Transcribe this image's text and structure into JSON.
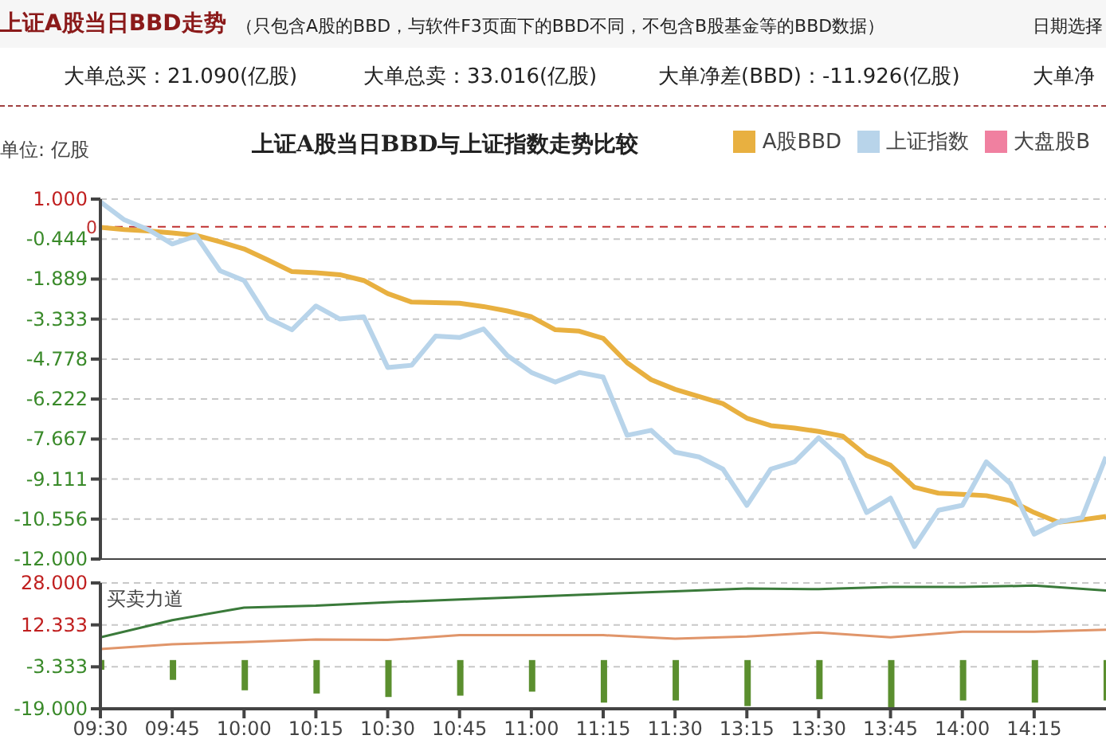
{
  "chart_data": [
    {
      "type": "line",
      "title": "上证A股当日BBD与上证指数走势比较",
      "ylabel": "单位: 亿股",
      "annotations": [
        "上证A股当日BBD走势",
        "（只包含A股的BBD，与软件F3页面下的BBD不同，不包含B股基金等的BBD数据）",
        "日期选择",
        "大单总买：21.090(亿股)",
        "大单总卖：33.016(亿股)",
        "大单净差(BBD)：-11.926(亿股)",
        "大单净"
      ],
      "categories": [
        null,
        null,
        null,
        null,
        null,
        null,
        null,
        null,
        null,
        null,
        null,
        null,
        null,
        null,
        null,
        null,
        null,
        null,
        null,
        null,
        null,
        null,
        null,
        null,
        null,
        null,
        null,
        null,
        null,
        null,
        null,
        null,
        null,
        null,
        null,
        null,
        null,
        null,
        null,
        null,
        null,
        null,
        null
      ],
      "series": [
        {
          "name": "A股BBD",
          "color": "#e8b040",
          "values": [
            -0.02,
            -0.1,
            -0.15,
            -0.22,
            -0.31,
            -0.54,
            -0.8,
            -1.2,
            -1.62,
            -1.66,
            -1.73,
            -1.94,
            -2.41,
            -2.72,
            -2.74,
            -2.76,
            -2.88,
            -3.04,
            -3.25,
            -3.72,
            -3.77,
            -4.03,
            -4.91,
            -5.52,
            -5.87,
            -6.13,
            -6.39,
            -6.91,
            -7.18,
            -7.27,
            -7.39,
            -7.56,
            -8.26,
            -8.61,
            -9.41,
            -9.62,
            -9.66,
            -9.71,
            -9.89,
            -10.32,
            -10.67,
            -10.58,
            -10.46
          ]
        },
        {
          "name": "上证指数",
          "color": "#b8d4ea",
          "values": [
            0.9,
            0.25,
            -0.1,
            -0.62,
            -0.33,
            -1.59,
            -1.94,
            -3.3,
            -3.72,
            -2.86,
            -3.33,
            -3.25,
            -5.08,
            -5.0,
            -3.95,
            -4.0,
            -3.69,
            -4.65,
            -5.26,
            -5.61,
            -5.26,
            -5.43,
            -7.53,
            -7.35,
            -8.14,
            -8.31,
            -8.75,
            -10.06,
            -8.75,
            -8.49,
            -7.62,
            -8.4,
            -10.32,
            -9.8,
            -11.55,
            -10.24,
            -10.06,
            -8.49,
            -9.27,
            -11.1,
            -10.67,
            -10.5,
            -8.31
          ]
        },
        {
          "name": "大盘股B",
          "color": "#f080a0",
          "values": [
            null,
            null,
            null,
            null,
            null,
            null,
            null,
            null,
            null,
            null,
            null,
            null,
            null,
            null,
            null,
            null,
            null,
            null,
            null,
            null,
            null,
            null,
            null,
            null,
            null,
            null,
            null,
            null,
            null,
            null,
            null,
            null,
            null,
            null,
            null,
            null,
            null,
            null,
            null,
            null,
            null,
            null,
            null
          ]
        }
      ],
      "ylim": [
        -12,
        1
      ],
      "yticks": [
        {
          "value": 1,
          "label": "1.000"
        },
        -0.444,
        -1.889,
        -3.333,
        -4.778,
        -6.222,
        -7.667,
        -9.111,
        -10.556,
        {
          "value": -12,
          "label": "-12.000"
        }
      ],
      "ref_lines": [
        {
          "axis": "y",
          "value": 0,
          "label": "0",
          "color": "#c03030",
          "line_style": "dashed"
        }
      ],
      "grid": "y",
      "legend": "top right",
      "marker": "none",
      "tick_labels": "y"
    },
    {
      "type": "line",
      "title": "买卖力道",
      "categories": [
        "09:30",
        "09:45",
        "10:00",
        "10:15",
        "10:30",
        "10:45",
        "11:00",
        "11:15",
        "11:30",
        "13:15",
        "13:30",
        "13:45",
        "14:00",
        "14:15",
        null
      ],
      "series": [
        {
          "color": "#3a7a3a",
          "values": [
            7.7,
            14.1,
            18.8,
            19.5,
            20.8,
            21.8,
            22.9,
            23.9,
            24.9,
            25.9,
            25.7,
            26.5,
            26.5,
            27.0,
            25.2
          ]
        },
        {
          "color": "#e0956a",
          "values": [
            3.3,
            5.1,
            5.9,
            6.9,
            6.7,
            8.5,
            8.5,
            8.5,
            7.2,
            8.0,
            9.5,
            7.7,
            9.8,
            9.8,
            10.5
          ]
        },
        {
          "type": "bar",
          "color": "#5b8f2f",
          "base": [
            -0.8,
            -0.8,
            -0.8,
            -0.8,
            -0.8,
            -0.8,
            -0.8,
            -0.8,
            -0.8,
            -0.8,
            -0.8,
            -0.8,
            -0.8,
            -0.8,
            -0.8
          ],
          "values": [
            -3.6,
            -7.4,
            -11.3,
            -12.5,
            -13.8,
            -13.3,
            -11.8,
            -15.9,
            -15.1,
            -17.2,
            -14.6,
            -17.7,
            -15.1,
            -15.9,
            -15.1
          ]
        }
      ],
      "ylim": [
        -19,
        28
      ],
      "yticks": [
        {
          "value": -19,
          "label": "-19.000"
        },
        -3.333,
        12.333,
        {
          "value": 28,
          "label": "28.000"
        }
      ],
      "grid": "y",
      "marker": "none"
    }
  ]
}
